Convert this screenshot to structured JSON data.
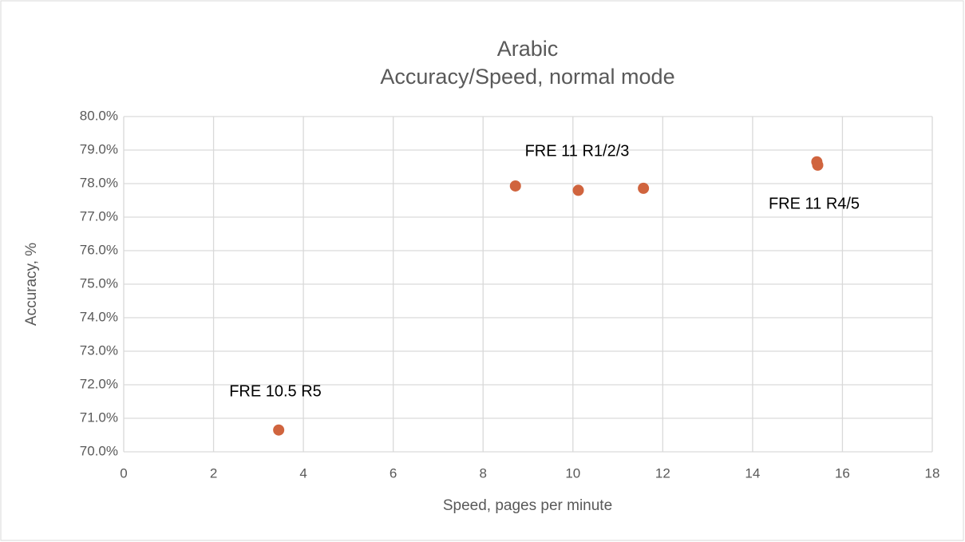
{
  "chart_data": {
    "type": "scatter",
    "title": "Arabic",
    "subtitle": "Accuracy/Speed, normal mode",
    "x_label": "Speed, pages per minute",
    "y_label": "Accuracy, %",
    "color": "#d0643e",
    "grid": true,
    "xlim": [
      0,
      18
    ],
    "xticks": [
      0,
      2,
      4,
      6,
      8,
      10,
      12,
      14,
      16,
      18
    ],
    "ylim": [
      70,
      80
    ],
    "yticks": [
      {
        "value": 70,
        "label": "70.0%"
      },
      {
        "value": 71,
        "label": "71.0%"
      },
      {
        "value": 72,
        "label": "72.0%"
      },
      {
        "value": 73,
        "label": "73.0%"
      },
      {
        "value": 74,
        "label": "74.0%"
      },
      {
        "value": 75,
        "label": "75.0%"
      },
      {
        "value": 76,
        "label": "76.0%"
      },
      {
        "value": 77,
        "label": "77.0%"
      },
      {
        "value": 78,
        "label": "78.0%"
      },
      {
        "value": 79,
        "label": "79.0%"
      },
      {
        "value": 80,
        "label": "80.0%"
      }
    ],
    "x": [
      3.45,
      8.72,
      10.12,
      11.57,
      15.43,
      15.45
    ],
    "values": [
      70.65,
      77.93,
      77.8,
      77.86,
      78.65,
      78.55
    ],
    "annotations": [
      "FRE 11 R1/2/3",
      "FRE 11 R4/5",
      "FRE 10.5 R5"
    ]
  }
}
